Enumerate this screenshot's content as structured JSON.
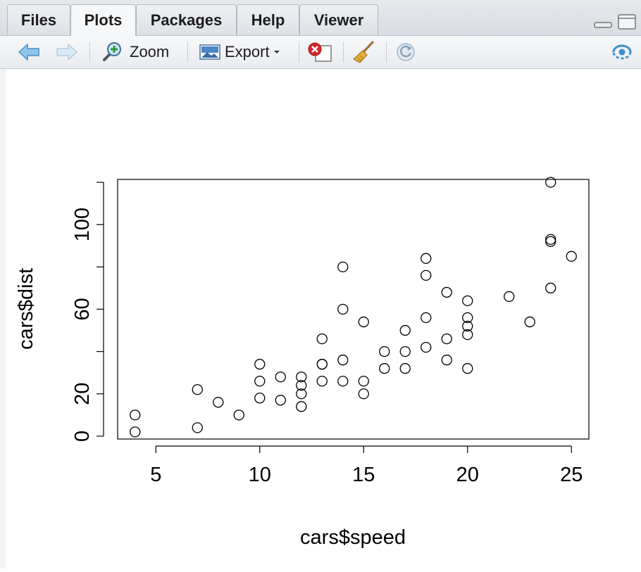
{
  "tabs": [
    {
      "label": "Files"
    },
    {
      "label": "Plots"
    },
    {
      "label": "Packages"
    },
    {
      "label": "Help"
    },
    {
      "label": "Viewer"
    }
  ],
  "active_tab": "Plots",
  "toolbar": {
    "zoom_label": "Zoom",
    "export_label": "Export"
  },
  "chart_data": {
    "type": "scatter",
    "title": "",
    "xlabel": "cars$speed",
    "ylabel": "cars$dist",
    "xlim": [
      3.16,
      25.84
    ],
    "ylim": [
      -1.36,
      121.36
    ],
    "x_ticks": [
      5,
      10,
      15,
      20,
      25
    ],
    "y_ticks": [
      0,
      20,
      40,
      60,
      80,
      100,
      120
    ],
    "y_tick_labels": [
      "0",
      "20",
      "",
      "60",
      "",
      "100",
      ""
    ],
    "grid": false,
    "points": [
      [
        4,
        2
      ],
      [
        4,
        10
      ],
      [
        7,
        4
      ],
      [
        7,
        22
      ],
      [
        8,
        16
      ],
      [
        9,
        10
      ],
      [
        10,
        18
      ],
      [
        10,
        26
      ],
      [
        10,
        34
      ],
      [
        11,
        17
      ],
      [
        11,
        28
      ],
      [
        12,
        14
      ],
      [
        12,
        20
      ],
      [
        12,
        24
      ],
      [
        12,
        28
      ],
      [
        13,
        26
      ],
      [
        13,
        34
      ],
      [
        13,
        34
      ],
      [
        13,
        46
      ],
      [
        14,
        26
      ],
      [
        14,
        36
      ],
      [
        14,
        60
      ],
      [
        14,
        80
      ],
      [
        15,
        20
      ],
      [
        15,
        26
      ],
      [
        15,
        54
      ],
      [
        16,
        32
      ],
      [
        16,
        40
      ],
      [
        17,
        32
      ],
      [
        17,
        40
      ],
      [
        17,
        50
      ],
      [
        18,
        42
      ],
      [
        18,
        56
      ],
      [
        18,
        76
      ],
      [
        18,
        84
      ],
      [
        19,
        36
      ],
      [
        19,
        46
      ],
      [
        19,
        68
      ],
      [
        20,
        32
      ],
      [
        20,
        48
      ],
      [
        20,
        52
      ],
      [
        20,
        56
      ],
      [
        20,
        64
      ],
      [
        22,
        66
      ],
      [
        23,
        54
      ],
      [
        24,
        70
      ],
      [
        24,
        92
      ],
      [
        24,
        93
      ],
      [
        24,
        120
      ],
      [
        25,
        85
      ]
    ]
  }
}
